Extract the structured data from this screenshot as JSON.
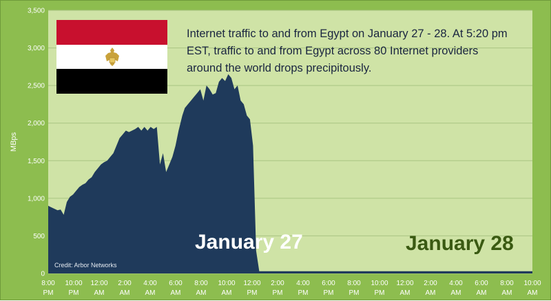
{
  "chart_data": {
    "type": "area",
    "title": "",
    "xlabel": "",
    "ylabel": "MBps",
    "ylim": [
      0,
      3500
    ],
    "yticks": [
      "0",
      "500",
      "1,000",
      "1,500",
      "2,000",
      "2,500",
      "3,000",
      "3,500"
    ],
    "xticks": [
      [
        "8:00",
        "PM"
      ],
      [
        "10:00",
        "PM"
      ],
      [
        "12:00",
        "AM"
      ],
      [
        "2:00",
        "AM"
      ],
      [
        "4:00",
        "AM"
      ],
      [
        "6:00",
        "AM"
      ],
      [
        "8:00",
        "AM"
      ],
      [
        "10:00",
        "AM"
      ],
      [
        "12:00",
        "PM"
      ],
      [
        "2:00",
        "PM"
      ],
      [
        "4:00",
        "PM"
      ],
      [
        "6:00",
        "PM"
      ],
      [
        "8:00",
        "PM"
      ],
      [
        "10:00",
        "PM"
      ],
      [
        "12:00",
        "AM"
      ],
      [
        "2:00",
        "AM"
      ],
      [
        "4:00",
        "AM"
      ],
      [
        "6:00",
        "AM"
      ],
      [
        "8:00",
        "AM"
      ],
      [
        "10:00",
        "AM"
      ]
    ],
    "grid": true,
    "series": [
      {
        "x": [
          0,
          0.5,
          1,
          1.5,
          2,
          2.5,
          3,
          3.5,
          4,
          4.5,
          5,
          5.5,
          6,
          6.5,
          7,
          7.5,
          8,
          8.5,
          9,
          9.5,
          10,
          10.5,
          11,
          11.5,
          12,
          12.5,
          13,
          13.5,
          14,
          14.5,
          15,
          15.5,
          16,
          16.5,
          17,
          17.5,
          18,
          18.5,
          19,
          19.5,
          20,
          20.5,
          21,
          21.3,
          21.6,
          22,
          22.5,
          23,
          23.5,
          24,
          24.5,
          25,
          25.5,
          26,
          26.5,
          27,
          27.5,
          28,
          28.5,
          29,
          29.5,
          30,
          30.5,
          31,
          31.5,
          32,
          32.5,
          33,
          33.5,
          34,
          34.5,
          35,
          35.5,
          36,
          36.5,
          37,
          38,
          39,
          40,
          42,
          44,
          46,
          48,
          50,
          52,
          54,
          56,
          58,
          60,
          62,
          64,
          66,
          68,
          70,
          72,
          74,
          76,
          78
        ],
        "values": [
          900,
          880,
          860,
          840,
          850,
          780,
          950,
          1020,
          1050,
          1100,
          1150,
          1180,
          1200,
          1250,
          1280,
          1350,
          1400,
          1450,
          1480,
          1500,
          1550,
          1600,
          1700,
          1800,
          1850,
          1900,
          1880,
          1900,
          1920,
          1950,
          1900,
          1950,
          1900,
          1950,
          1920,
          1950,
          1450,
          1600,
          1350,
          1450,
          1550,
          1700,
          1900,
          2000,
          2100,
          2200,
          2250,
          2300,
          2350,
          2400,
          2450,
          2300,
          2500,
          2450,
          2380,
          2400,
          2550,
          2600,
          2560,
          2650,
          2600,
          2450,
          2500,
          2300,
          2250,
          2100,
          2050,
          1700,
          300,
          30,
          30,
          30,
          30,
          30,
          30,
          30,
          30,
          30,
          30,
          30,
          30,
          30,
          30,
          30,
          30,
          30,
          30,
          30,
          30,
          30,
          30,
          30,
          30,
          30,
          30,
          30,
          30,
          30
        ]
      }
    ]
  },
  "annotation": "Internet traffic to and from Egypt on January 27 - 28. At 5:20 pm EST, traffic to and from Egypt across 80 Internet providers around the world  drops precipitously.",
  "labels": {
    "day1": "January 27",
    "day2": "January 28"
  },
  "credit": "Credit: Arbor Networks",
  "colors": {
    "background": "#8dbd4f",
    "plot_area": "#cfe3a6",
    "area_fill": "#1f3a5b",
    "gridline": "#a9c482",
    "flag_red": "#c8102e",
    "flag_white": "#ffffff",
    "flag_black": "#000000",
    "eagle": "#c9a23a"
  }
}
